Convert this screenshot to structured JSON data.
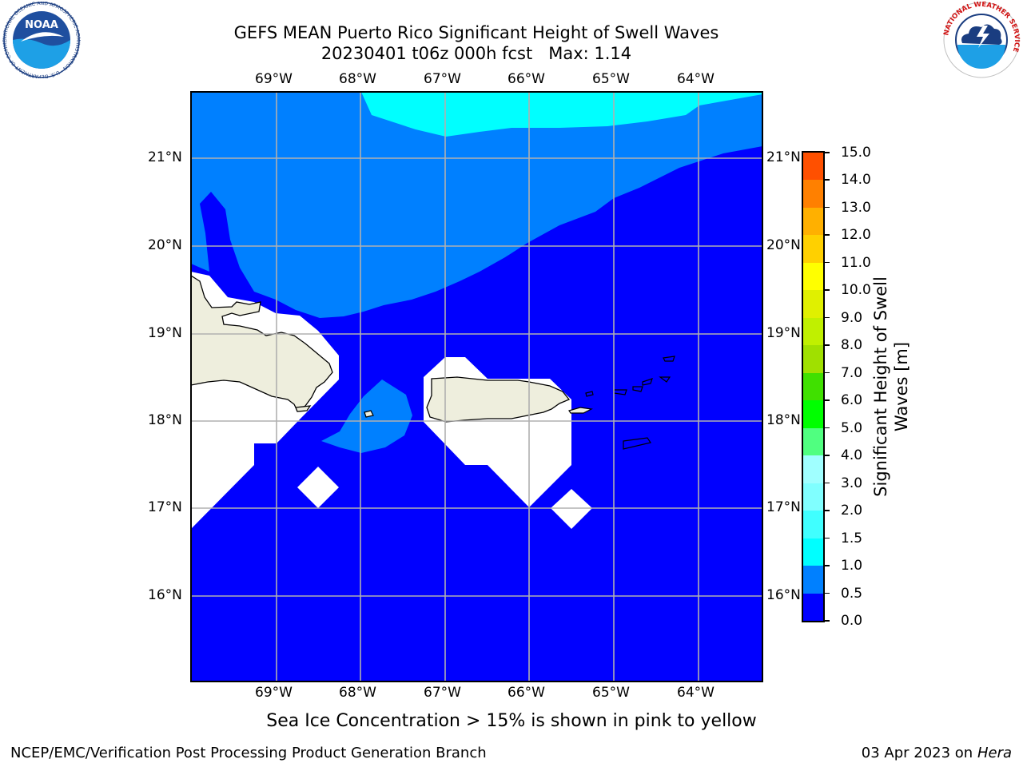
{
  "header": {
    "title_line1": "GEFS MEAN Puerto Rico Significant Height of Swell Waves",
    "title_line2": "20230401 t06z 000h fcst   Max: 1.14"
  },
  "logos": {
    "left": "NOAA",
    "left_ring_text": "NATIONAL OCEANIC AND ATMOSPHERIC ADMINISTRATION · U.S. DEPARTMENT OF COMMERCE",
    "right_ring_text": "NATIONAL WEATHER SERVICE"
  },
  "map": {
    "lon_labels": [
      "69°W",
      "68°W",
      "67°W",
      "66°W",
      "65°W",
      "64°W"
    ],
    "lat_labels": [
      "21°N",
      "20°N",
      "19°N",
      "18°N",
      "17°N",
      "16°N"
    ],
    "colors": {
      "ocean_low": "#0000ff",
      "ocean_mid": "#0080ff",
      "ocean_high": "#00ffff",
      "land": "#eeeedd",
      "missing": "#ffffff",
      "grid": "#b0b0b0"
    }
  },
  "colorbar": {
    "label": "Significant Height of Swell Waves [m]",
    "ticks": [
      "0.0",
      "0.5",
      "1.0",
      "1.5",
      "2.0",
      "3.0",
      "4.0",
      "5.0",
      "6.0",
      "7.0",
      "8.0",
      "9.0",
      "10.0",
      "11.0",
      "12.0",
      "13.0",
      "14.0",
      "15.0"
    ],
    "colors": [
      "#0000ff",
      "#0080ff",
      "#00ffff",
      "#40ffff",
      "#80ffff",
      "#a0ffff",
      "#50ff80",
      "#00ff00",
      "#40e000",
      "#a0e000",
      "#c0f000",
      "#e0f000",
      "#ffff00",
      "#ffd000",
      "#ffb000",
      "#ff8000",
      "#ff5000",
      "#ff2000",
      "#ff0000"
    ]
  },
  "caption": "Sea Ice Concentration > 15% is shown in pink to yellow",
  "footer": {
    "left": "NCEP/EMC/Verification Post Processing Product Generation Branch",
    "right_prefix": "03 Apr 2023 on ",
    "right_host": "Hera"
  }
}
